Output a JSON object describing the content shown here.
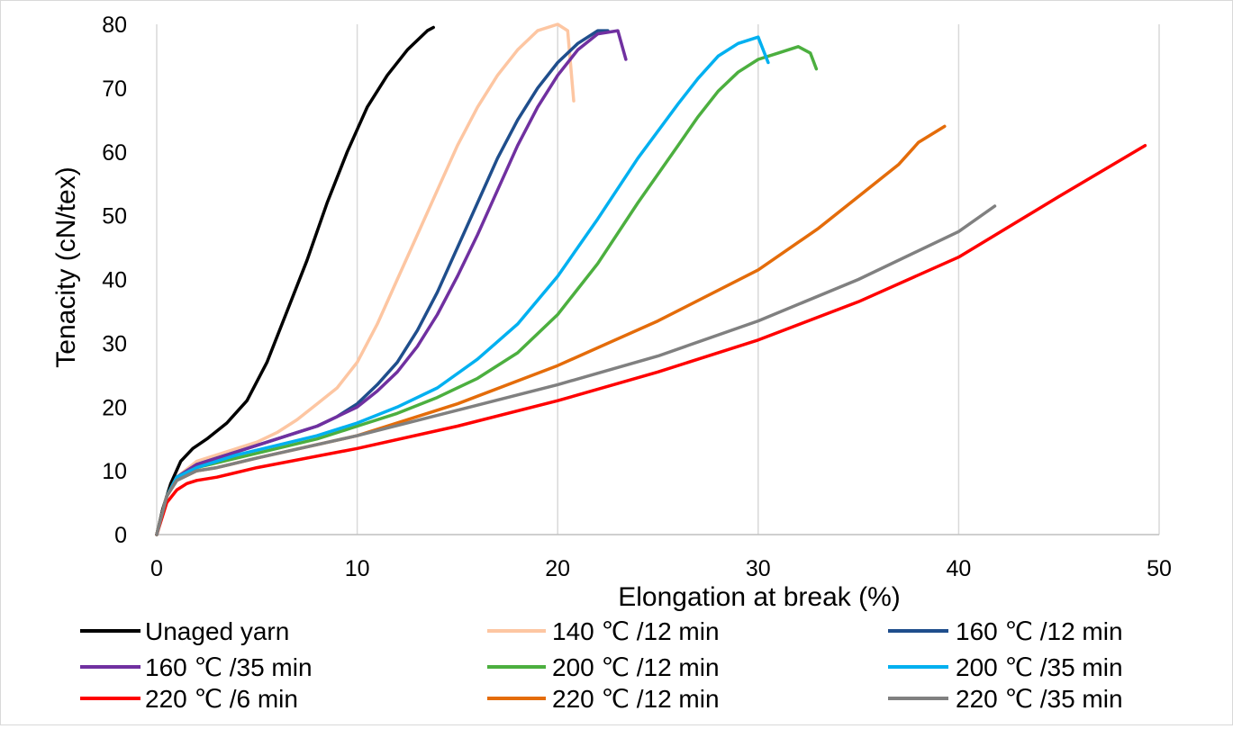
{
  "chart_data": {
    "type": "line",
    "title": "",
    "xlabel": "Elongation at break (%)",
    "ylabel": "Tenacity (cN/tex)",
    "xlim": [
      0,
      50
    ],
    "ylim": [
      0,
      80
    ],
    "xticks": [
      0,
      10,
      20,
      30,
      40,
      50
    ],
    "yticks": [
      0,
      10,
      20,
      30,
      40,
      50,
      60,
      70,
      80
    ],
    "grid": "vertical",
    "legend_position": "bottom",
    "series": [
      {
        "name": "Unaged yarn",
        "color": "#000000",
        "x": [
          0,
          0.3,
          0.7,
          1.2,
          1.8,
          2.5,
          3.5,
          4.5,
          5.5,
          6.5,
          7.5,
          8.5,
          9.5,
          10.5,
          11.5,
          12.5,
          13.5,
          13.8
        ],
        "y": [
          0,
          4,
          8,
          11.5,
          13.5,
          15,
          17.5,
          21,
          27,
          35,
          43,
          52,
          60,
          67,
          72,
          76,
          79,
          79.5
        ]
      },
      {
        "name": "140 ℃ /12 min",
        "color": "#FDC6A2",
        "x": [
          0,
          0.5,
          1,
          2,
          3,
          4,
          5,
          6,
          7,
          8,
          9,
          10,
          11,
          12,
          13,
          14,
          15,
          16,
          17,
          18,
          19,
          20,
          20.5,
          20.8
        ],
        "y": [
          0,
          6,
          9,
          11.5,
          12.5,
          13.5,
          14.5,
          16,
          18,
          20.5,
          23,
          27,
          33,
          40,
          47,
          54,
          61,
          67,
          72,
          76,
          79,
          80,
          79,
          68
        ]
      },
      {
        "name": "160 ℃ /12 min",
        "color": "#1F4E8C",
        "x": [
          0,
          0.5,
          1,
          2,
          3,
          4,
          5,
          6,
          7,
          8,
          9,
          10,
          11,
          12,
          13,
          14,
          15,
          16,
          17,
          18,
          19,
          20,
          21,
          22,
          22.5
        ],
        "y": [
          0,
          6,
          9,
          11,
          12,
          13,
          14,
          15,
          16,
          17,
          18.5,
          20.5,
          23.5,
          27,
          32,
          38,
          45,
          52,
          59,
          65,
          70,
          74,
          77,
          79,
          79
        ]
      },
      {
        "name": "160 ℃ /35 min",
        "color": "#7030A0",
        "x": [
          0,
          0.5,
          1,
          2,
          3,
          4,
          5,
          6,
          7,
          8,
          9,
          10,
          11,
          12,
          13,
          14,
          15,
          16,
          17,
          18,
          19,
          20,
          21,
          22,
          23,
          23.4
        ],
        "y": [
          0,
          6,
          9,
          11,
          12,
          13,
          14,
          15,
          16,
          17,
          18.5,
          20,
          22.5,
          25.5,
          29.5,
          34.5,
          40.5,
          47,
          54,
          61,
          67,
          72,
          76,
          78.5,
          79,
          74.5
        ]
      },
      {
        "name": "200 ℃ /12 min",
        "color": "#4CAF3F",
        "x": [
          0,
          0.5,
          1,
          2,
          4,
          6,
          8,
          10,
          12,
          14,
          16,
          18,
          20,
          22,
          24,
          26,
          27,
          28,
          29,
          30,
          31,
          32,
          32.6,
          32.9
        ],
        "y": [
          0,
          6,
          9,
          10.5,
          12,
          13.5,
          15,
          17,
          19,
          21.5,
          24.5,
          28.5,
          34.5,
          42.5,
          52,
          61,
          65.5,
          69.5,
          72.5,
          74.5,
          75.5,
          76.5,
          75.5,
          73
        ]
      },
      {
        "name": "200 ℃ /35 min",
        "color": "#00B0F0",
        "x": [
          0,
          0.5,
          1,
          2,
          4,
          6,
          8,
          10,
          12,
          14,
          16,
          18,
          20,
          22,
          24,
          26,
          27,
          28,
          29,
          30,
          30.5
        ],
        "y": [
          0,
          6,
          9,
          10.5,
          12.5,
          14,
          15.5,
          17.5,
          20,
          23,
          27.5,
          33,
          40.5,
          49.5,
          59,
          67.5,
          71.5,
          75,
          77,
          78,
          74
        ]
      },
      {
        "name": "220 ℃ /6 min",
        "color": "#FF0000",
        "x": [
          0,
          0.5,
          1,
          1.5,
          2,
          3,
          5,
          10,
          15,
          20,
          25,
          30,
          35,
          40,
          45,
          49.3
        ],
        "y": [
          0,
          5,
          7,
          8,
          8.5,
          9,
          10.5,
          13.5,
          17,
          21,
          25.5,
          30.5,
          36.5,
          43.5,
          53,
          61
        ]
      },
      {
        "name": "220 ℃ /12 min",
        "color": "#E46C0A",
        "x": [
          0,
          0.5,
          1,
          2,
          3,
          5,
          10,
          15,
          20,
          25,
          30,
          33,
          35,
          37,
          38,
          39.3
        ],
        "y": [
          0,
          6,
          8.5,
          10,
          10.5,
          12,
          15.5,
          20.5,
          26.5,
          33.5,
          41.5,
          48,
          53,
          58,
          61.5,
          64
        ]
      },
      {
        "name": "220 ℃ /35 min",
        "color": "#808080",
        "x": [
          0,
          0.5,
          1,
          2,
          3,
          5,
          10,
          15,
          20,
          25,
          30,
          35,
          40,
          41.8
        ],
        "y": [
          0,
          6,
          8.5,
          10,
          10.5,
          12,
          15.5,
          19.5,
          23.5,
          28,
          33.5,
          40,
          47.5,
          51.5
        ]
      }
    ]
  }
}
